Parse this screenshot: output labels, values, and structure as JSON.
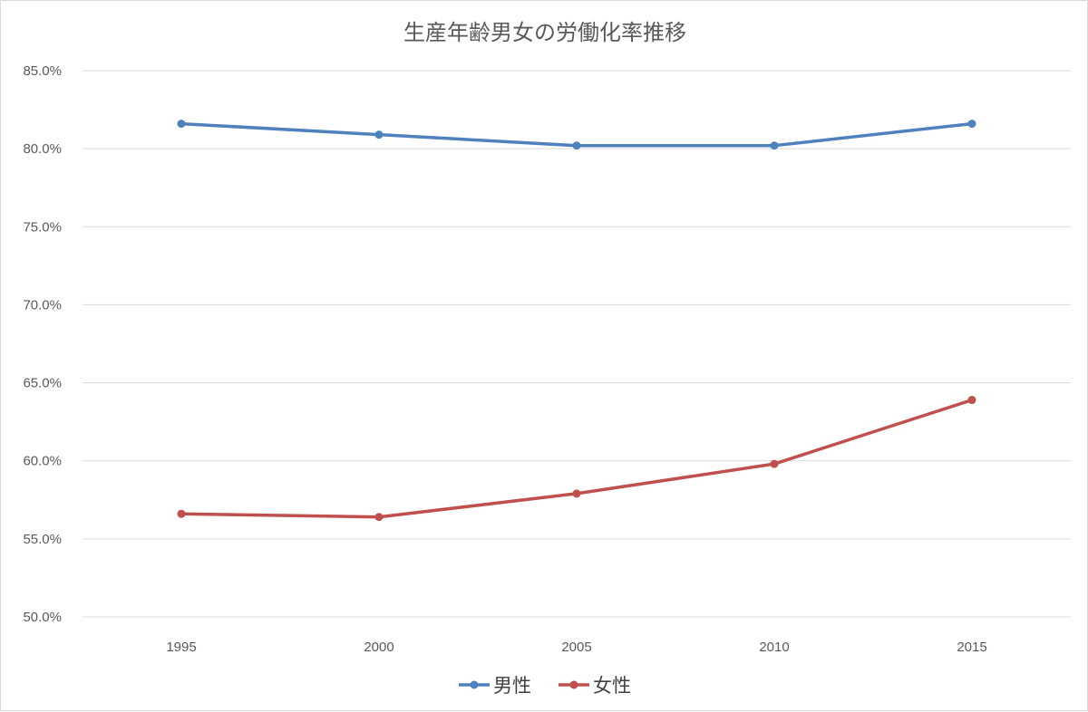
{
  "chart_data": {
    "type": "line",
    "title": "生産年齢男女の労働化率推移",
    "xlabel": "",
    "ylabel": "",
    "categories": [
      "1995",
      "2000",
      "2005",
      "2010",
      "2015"
    ],
    "series": [
      {
        "name": "男性",
        "color": "#4f81bd",
        "values": [
          81.6,
          80.9,
          80.2,
          80.2,
          81.6
        ]
      },
      {
        "name": "女性",
        "color": "#c0504d",
        "values": [
          56.6,
          56.4,
          57.9,
          59.8,
          63.9
        ]
      }
    ],
    "ylim": [
      50,
      85
    ],
    "yticks": [
      50,
      55,
      60,
      65,
      70,
      75,
      80,
      85
    ],
    "ytick_labels": [
      "50.0%",
      "55.0%",
      "60.0%",
      "65.0%",
      "70.0%",
      "75.0%",
      "80.0%",
      "85.0%"
    ],
    "grid": true,
    "legend_position": "bottom"
  }
}
